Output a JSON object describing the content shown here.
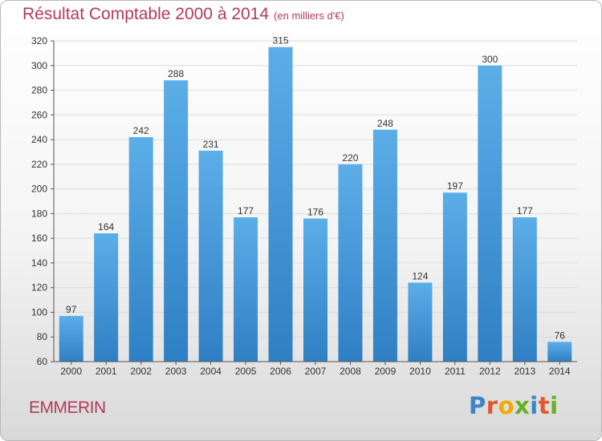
{
  "title": {
    "main": "Résultat Comptable 2000 à 2014",
    "unit": "(en milliers d'€)"
  },
  "commune": "EMMERIN",
  "logo": {
    "letters": [
      {
        "ch": "P",
        "color": "#3a86c8"
      },
      {
        "ch": "r",
        "color": "#e4572e"
      },
      {
        "ch": "o",
        "color": "#f2a900"
      },
      {
        "ch": "x",
        "color": "#6ab023"
      },
      {
        "ch": "i",
        "color": "#3a86c8"
      },
      {
        "ch": "t",
        "color": "#e4572e"
      },
      {
        "ch": "i",
        "color": "#6ab023"
      }
    ]
  },
  "colors": {
    "bar_light": "#5caee8",
    "bar_dark": "#2f7fc4",
    "grid": "#dcdcdc",
    "axis": "#555555",
    "title": "#b23a5e"
  },
  "chart_data": {
    "type": "bar",
    "categories": [
      "2000",
      "2001",
      "2002",
      "2003",
      "2004",
      "2005",
      "2006",
      "2007",
      "2008",
      "2009",
      "2010",
      "2011",
      "2012",
      "2013",
      "2014"
    ],
    "values": [
      97,
      164,
      242,
      288,
      231,
      177,
      315,
      176,
      220,
      248,
      124,
      197,
      300,
      177,
      76
    ],
    "ylim": [
      60,
      320
    ],
    "yticks": [
      60,
      80,
      100,
      120,
      140,
      160,
      180,
      200,
      220,
      240,
      260,
      280,
      300,
      320
    ],
    "grid": true,
    "title": "Résultat Comptable 2000 à 2014",
    "xlabel": "",
    "ylabel": ""
  }
}
